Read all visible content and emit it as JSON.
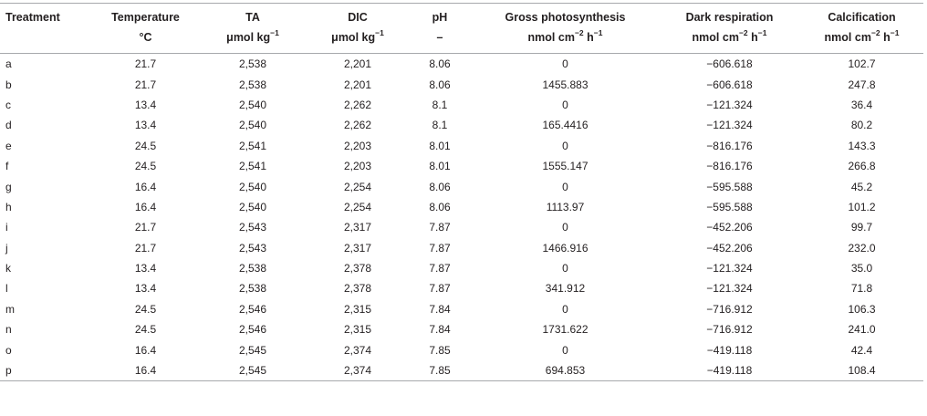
{
  "table": {
    "headers": [
      {
        "label": "Treatment",
        "unit_main": "",
        "unit_sup": "",
        "unit_tail": "",
        "unit_sup2": ""
      },
      {
        "label": "Temperature",
        "unit_main": "°C",
        "unit_sup": "",
        "unit_tail": "",
        "unit_sup2": ""
      },
      {
        "label": "TA",
        "unit_main": "μmol kg",
        "unit_sup": "−1",
        "unit_tail": "",
        "unit_sup2": ""
      },
      {
        "label": "DIC",
        "unit_main": "μmol kg",
        "unit_sup": "−1",
        "unit_tail": "",
        "unit_sup2": ""
      },
      {
        "label": "pH",
        "unit_main": "–",
        "unit_sup": "",
        "unit_tail": "",
        "unit_sup2": ""
      },
      {
        "label": "Gross photosynthesis",
        "unit_main": "nmol cm",
        "unit_sup": "−2",
        "unit_tail": " h",
        "unit_sup2": "−1"
      },
      {
        "label": "Dark respiration",
        "unit_main": "nmol cm",
        "unit_sup": "−2",
        "unit_tail": " h",
        "unit_sup2": "−1"
      },
      {
        "label": "Calcification",
        "unit_main": "nmol cm",
        "unit_sup": "−2",
        "unit_tail": " h",
        "unit_sup2": "−1"
      }
    ],
    "rows": [
      [
        "a",
        "21.7",
        "2,538",
        "2,201",
        "8.06",
        "0",
        "−606.618",
        "102.7"
      ],
      [
        "b",
        "21.7",
        "2,538",
        "2,201",
        "8.06",
        "1455.883",
        "−606.618",
        "247.8"
      ],
      [
        "c",
        "13.4",
        "2,540",
        "2,262",
        "8.1",
        "0",
        "−121.324",
        "36.4"
      ],
      [
        "d",
        "13.4",
        "2,540",
        "2,262",
        "8.1",
        "165.4416",
        "−121.324",
        "80.2"
      ],
      [
        "e",
        "24.5",
        "2,541",
        "2,203",
        "8.01",
        "0",
        "−816.176",
        "143.3"
      ],
      [
        "f",
        "24.5",
        "2,541",
        "2,203",
        "8.01",
        "1555.147",
        "−816.176",
        "266.8"
      ],
      [
        "g",
        "16.4",
        "2,540",
        "2,254",
        "8.06",
        "0",
        "−595.588",
        "45.2"
      ],
      [
        "h",
        "16.4",
        "2,540",
        "2,254",
        "8.06",
        "1113.97",
        "−595.588",
        "101.2"
      ],
      [
        "i",
        "21.7",
        "2,543",
        "2,317",
        "7.87",
        "0",
        "−452.206",
        "99.7"
      ],
      [
        "j",
        "21.7",
        "2,543",
        "2,317",
        "7.87",
        "1466.916",
        "−452.206",
        "232.0"
      ],
      [
        "k",
        "13.4",
        "2,538",
        "2,378",
        "7.87",
        "0",
        "−121.324",
        "35.0"
      ],
      [
        "l",
        "13.4",
        "2,538",
        "2,378",
        "7.87",
        "341.912",
        "−121.324",
        "71.8"
      ],
      [
        "m",
        "24.5",
        "2,546",
        "2,315",
        "7.84",
        "0",
        "−716.912",
        "106.3"
      ],
      [
        "n",
        "24.5",
        "2,546",
        "2,315",
        "7.84",
        "1731.622",
        "−716.912",
        "241.0"
      ],
      [
        "o",
        "16.4",
        "2,545",
        "2,374",
        "7.85",
        "0",
        "−419.118",
        "42.4"
      ],
      [
        "p",
        "16.4",
        "2,545",
        "2,374",
        "7.85",
        "694.853",
        "−419.118",
        "108.4"
      ]
    ]
  },
  "colors": {
    "text": "#231f20",
    "rule": "#a7a9ac",
    "background": "#ffffff"
  }
}
